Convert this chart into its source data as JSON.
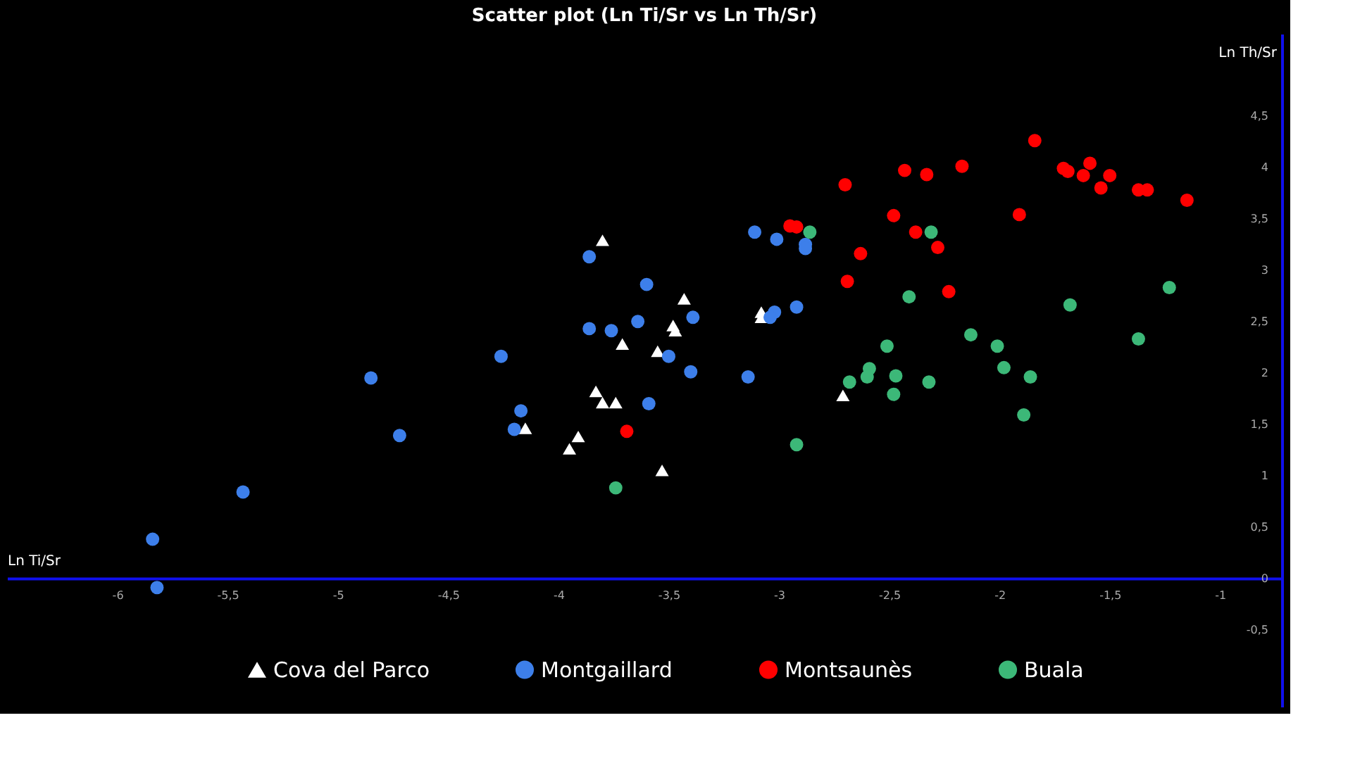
{
  "chart_data": {
    "type": "scatter",
    "title": "Scatter plot (Ln Ti/Sr vs Ln Th/Sr)",
    "xlabel": "Ln Ti/Sr",
    "ylabel": "Ln Th/Sr",
    "xlim": [
      -6.5,
      -0.72
    ],
    "ylim": [
      -1.25,
      5.3
    ],
    "xticks": [
      -6,
      {
        "value": -5.5,
        "label": "-5,5"
      },
      -5,
      {
        "value": -4.5,
        "label": "-4,5"
      },
      -4,
      {
        "value": -3.5,
        "label": "-3,5"
      },
      -3,
      {
        "value": -2.5,
        "label": "-2,5"
      },
      -2,
      {
        "value": -1.5,
        "label": "-1,5"
      },
      -1
    ],
    "yticks": [
      {
        "value": -0.5,
        "label": "-0,5"
      },
      0,
      {
        "value": 0.5,
        "label": "0,5"
      },
      1,
      {
        "value": 1.5,
        "label": "1,5"
      },
      2,
      {
        "value": 2.5,
        "label": "2,5"
      },
      3,
      {
        "value": 3.5,
        "label": "3,5"
      },
      4,
      {
        "value": 4.5,
        "label": "4,5"
      }
    ],
    "grid": false,
    "legend": "bottom",
    "series": [
      {
        "name": "Cova del Parco",
        "color": "#ffffff",
        "marker": "triangle",
        "x": [
          -3.8,
          -3.43,
          -3.48,
          -3.47,
          -3.08,
          -3.08,
          -3.71,
          -3.55,
          -3.83,
          -3.8,
          -3.74,
          -4.15,
          -3.91,
          -3.95,
          -3.53,
          -2.71
        ],
        "values": [
          3.29,
          2.72,
          2.46,
          2.41,
          2.59,
          2.54,
          2.28,
          2.21,
          1.82,
          1.71,
          1.71,
          1.46,
          1.38,
          1.26,
          1.05,
          1.78
        ]
      },
      {
        "name": "Montgaillard",
        "color": "#3d7fea",
        "marker": "circle",
        "x": [
          -5.84,
          -5.82,
          -5.43,
          -4.85,
          -4.72,
          -4.26,
          -4.17,
          -4.2,
          -3.86,
          -3.6,
          -3.86,
          -3.76,
          -3.64,
          -3.39,
          -3.5,
          -3.4,
          -3.59,
          -3.11,
          -3.01,
          -2.88,
          -2.88,
          -3.02,
          -3.04,
          -2.92,
          -3.14
        ],
        "values": [
          0.38,
          -0.09,
          0.84,
          1.95,
          1.39,
          2.16,
          1.63,
          1.45,
          3.13,
          2.86,
          2.43,
          2.41,
          2.5,
          2.54,
          2.16,
          2.01,
          1.7,
          3.37,
          3.3,
          3.25,
          3.21,
          2.59,
          2.54,
          2.64,
          1.96
        ]
      },
      {
        "name": "Montsaunès",
        "color": "#ff0000",
        "marker": "circle",
        "x": [
          -3.69,
          -2.95,
          -2.92,
          -2.7,
          -2.43,
          -2.33,
          -2.17,
          -1.84,
          -1.71,
          -1.69,
          -1.59,
          -1.62,
          -1.5,
          -1.54,
          -1.37,
          -1.33,
          -1.15,
          -2.48,
          -2.38,
          -2.28,
          -2.63,
          -2.69,
          -2.23,
          -1.91
        ],
        "values": [
          1.43,
          3.43,
          3.42,
          3.83,
          3.97,
          3.93,
          4.01,
          4.26,
          3.99,
          3.96,
          4.04,
          3.92,
          3.92,
          3.8,
          3.78,
          3.78,
          3.68,
          3.53,
          3.37,
          3.22,
          3.16,
          2.89,
          2.79,
          3.54
        ]
      },
      {
        "name": "Buala",
        "color": "#3cb878",
        "marker": "circle",
        "x": [
          -3.74,
          -2.92,
          -2.86,
          -2.31,
          -2.41,
          -1.68,
          -1.23,
          -1.37,
          -2.13,
          -2.01,
          -2.51,
          -1.98,
          -2.59,
          -2.6,
          -2.68,
          -2.47,
          -2.32,
          -2.48,
          -1.86,
          -1.89
        ],
        "values": [
          0.88,
          1.3,
          3.37,
          3.37,
          2.74,
          2.66,
          2.83,
          2.33,
          2.37,
          2.26,
          2.26,
          2.05,
          2.04,
          1.96,
          1.91,
          1.97,
          1.91,
          1.79,
          1.96,
          1.59
        ]
      }
    ]
  }
}
